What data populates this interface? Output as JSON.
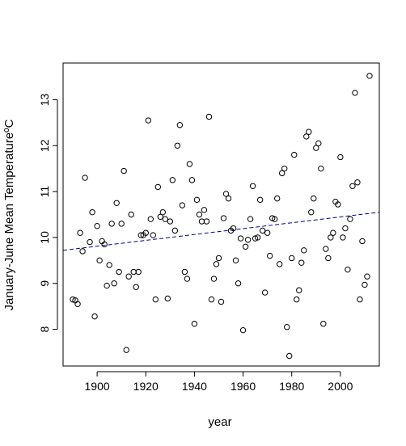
{
  "chart_data": {
    "type": "scatter",
    "title": "",
    "xlabel": "year",
    "ylabel": "January-June Mean TemperatureºC",
    "xlim": [
      1886,
      2016
    ],
    "ylim": [
      7.2,
      13.8
    ],
    "x_ticks": [
      1900,
      1920,
      1940,
      1960,
      1980,
      2000
    ],
    "y_ticks": [
      8,
      9,
      10,
      11,
      12,
      13
    ],
    "grid": false,
    "marker": "open-circle",
    "trend_line": {
      "style": "dashed",
      "color": "#00008b",
      "start": [
        1886,
        9.72
      ],
      "end": [
        2016,
        10.55
      ]
    },
    "points": [
      [
        1890,
        8.65
      ],
      [
        1891,
        8.63
      ],
      [
        1892,
        8.55
      ],
      [
        1893,
        10.1
      ],
      [
        1894,
        9.7
      ],
      [
        1895,
        11.3
      ],
      [
        1897,
        9.9
      ],
      [
        1898,
        10.55
      ],
      [
        1899,
        8.28
      ],
      [
        1900,
        10.25
      ],
      [
        1901,
        9.5
      ],
      [
        1902,
        9.92
      ],
      [
        1903,
        9.85
      ],
      [
        1904,
        8.95
      ],
      [
        1905,
        9.4
      ],
      [
        1906,
        10.3
      ],
      [
        1907,
        9.0
      ],
      [
        1908,
        10.75
      ],
      [
        1909,
        9.25
      ],
      [
        1910,
        10.3
      ],
      [
        1911,
        11.45
      ],
      [
        1912,
        7.55
      ],
      [
        1913,
        9.15
      ],
      [
        1914,
        10.5
      ],
      [
        1915,
        9.25
      ],
      [
        1916,
        8.92
      ],
      [
        1917,
        9.25
      ],
      [
        1918,
        10.05
      ],
      [
        1919,
        10.05
      ],
      [
        1920,
        10.1
      ],
      [
        1921,
        12.55
      ],
      [
        1922,
        10.4
      ],
      [
        1923,
        10.05
      ],
      [
        1924,
        8.65
      ],
      [
        1925,
        11.1
      ],
      [
        1926,
        10.45
      ],
      [
        1927,
        10.55
      ],
      [
        1928,
        10.4
      ],
      [
        1929,
        8.67
      ],
      [
        1930,
        10.35
      ],
      [
        1931,
        11.25
      ],
      [
        1932,
        10.15
      ],
      [
        1933,
        12.0
      ],
      [
        1934,
        12.45
      ],
      [
        1935,
        10.7
      ],
      [
        1936,
        9.25
      ],
      [
        1937,
        9.1
      ],
      [
        1938,
        11.6
      ],
      [
        1939,
        11.25
      ],
      [
        1940,
        8.12
      ],
      [
        1941,
        10.82
      ],
      [
        1942,
        10.5
      ],
      [
        1943,
        10.35
      ],
      [
        1944,
        10.6
      ],
      [
        1945,
        10.35
      ],
      [
        1946,
        12.63
      ],
      [
        1947,
        8.65
      ],
      [
        1948,
        9.1
      ],
      [
        1949,
        9.42
      ],
      [
        1950,
        9.55
      ],
      [
        1951,
        8.6
      ],
      [
        1952,
        10.42
      ],
      [
        1953,
        10.95
      ],
      [
        1954,
        10.85
      ],
      [
        1955,
        10.15
      ],
      [
        1956,
        10.2
      ],
      [
        1957,
        9.5
      ],
      [
        1958,
        9.0
      ],
      [
        1959,
        9.98
      ],
      [
        1960,
        7.98
      ],
      [
        1961,
        9.8
      ],
      [
        1962,
        9.95
      ],
      [
        1963,
        10.4
      ],
      [
        1964,
        11.12
      ],
      [
        1965,
        9.98
      ],
      [
        1966,
        10.0
      ],
      [
        1967,
        10.82
      ],
      [
        1968,
        10.15
      ],
      [
        1969,
        8.8
      ],
      [
        1970,
        10.1
      ],
      [
        1971,
        9.6
      ],
      [
        1972,
        10.42
      ],
      [
        1973,
        10.4
      ],
      [
        1974,
        10.85
      ],
      [
        1975,
        9.42
      ],
      [
        1976,
        11.4
      ],
      [
        1977,
        11.5
      ],
      [
        1978,
        8.05
      ],
      [
        1979,
        7.42
      ],
      [
        1980,
        9.55
      ],
      [
        1981,
        11.8
      ],
      [
        1982,
        8.65
      ],
      [
        1983,
        8.85
      ],
      [
        1984,
        9.45
      ],
      [
        1985,
        9.72
      ],
      [
        1986,
        12.2
      ],
      [
        1987,
        12.3
      ],
      [
        1988,
        10.55
      ],
      [
        1989,
        10.85
      ],
      [
        1990,
        11.95
      ],
      [
        1991,
        12.05
      ],
      [
        1992,
        11.5
      ],
      [
        1993,
        8.12
      ],
      [
        1994,
        9.75
      ],
      [
        1995,
        9.55
      ],
      [
        1996,
        10.0
      ],
      [
        1997,
        10.1
      ],
      [
        1998,
        10.78
      ],
      [
        1999,
        10.72
      ],
      [
        2000,
        11.75
      ],
      [
        2001,
        10.0
      ],
      [
        2002,
        10.2
      ],
      [
        2003,
        9.3
      ],
      [
        2004,
        10.4
      ],
      [
        2005,
        11.12
      ],
      [
        2006,
        13.15
      ],
      [
        2007,
        11.2
      ],
      [
        2008,
        8.65
      ],
      [
        2009,
        9.92
      ],
      [
        2010,
        8.97
      ],
      [
        2011,
        9.15
      ],
      [
        2012,
        13.52
      ]
    ]
  }
}
